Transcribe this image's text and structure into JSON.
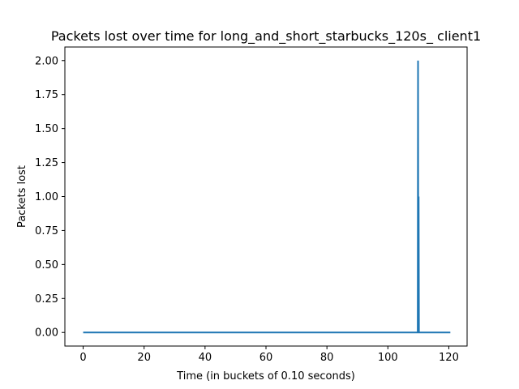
{
  "chart_data": {
    "type": "line",
    "title": "Packets lost over time for long_and_short_starbucks_120s_ client1",
    "xlabel": "Time (in buckets of 0.10 seconds)",
    "ylabel": "Packets lost",
    "xlim": [
      -6,
      126
    ],
    "ylim": [
      -0.1,
      2.1
    ],
    "xticks": [
      0,
      20,
      40,
      60,
      80,
      100,
      120
    ],
    "xtick_labels": [
      "0",
      "20",
      "40",
      "60",
      "80",
      "100",
      "120"
    ],
    "yticks": [
      0,
      0.25,
      0.5,
      0.75,
      1.0,
      1.25,
      1.5,
      1.75,
      2.0
    ],
    "ytick_labels": [
      "0.00",
      "0.25",
      "0.50",
      "0.75",
      "1.00",
      "1.25",
      "1.50",
      "1.75",
      "2.00"
    ],
    "grid": false,
    "series": [
      {
        "color": "#1f77b4",
        "x": [
          0,
          109.8,
          109.9,
          110.0,
          110.1,
          110.2,
          110.3,
          120.5
        ],
        "y": [
          0,
          0,
          2,
          0,
          1,
          0,
          0,
          0
        ]
      }
    ]
  }
}
